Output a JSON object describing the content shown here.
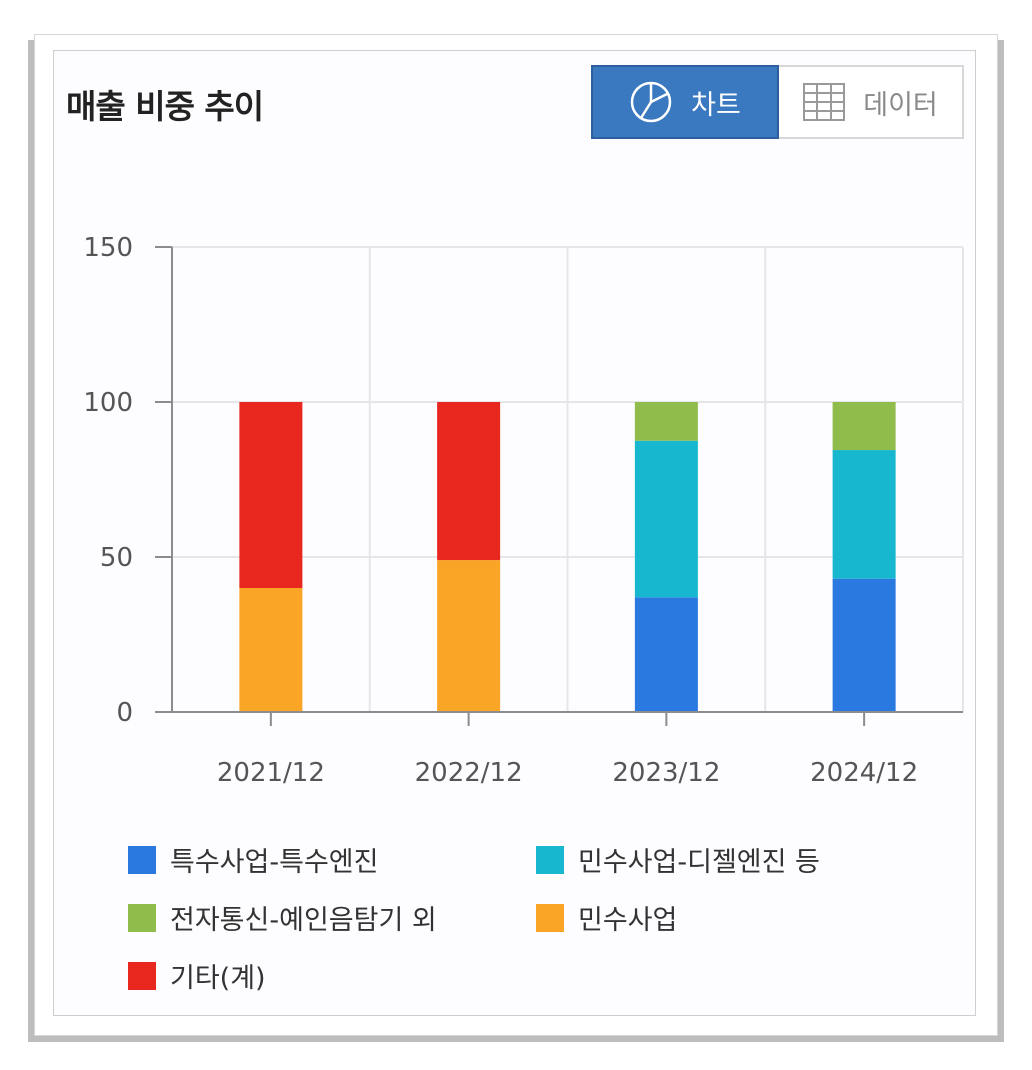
{
  "header": {
    "title": "매출 비중 추이"
  },
  "toggle": {
    "chart_label": "차트",
    "data_label": "데이터",
    "chart_icon": "pie-chart-icon",
    "data_icon": "table-grid-icon"
  },
  "chart_data": {
    "type": "bar",
    "stacked": true,
    "categories": [
      "2021/12",
      "2022/12",
      "2023/12",
      "2024/12"
    ],
    "ylim": [
      0,
      150
    ],
    "yticks": [
      0,
      50,
      100,
      150
    ],
    "grid": true,
    "legend_position": "bottom",
    "series": [
      {
        "name": "특수사업-특수엔진",
        "color": "#2979e0",
        "values": [
          0,
          0,
          37,
          43
        ]
      },
      {
        "name": "민수사업-디젤엔진 등",
        "color": "#17b8cf",
        "values": [
          0,
          0,
          50.5,
          41.5
        ]
      },
      {
        "name": "전자통신-예인음탐기 외",
        "color": "#8fbc4b",
        "values": [
          0,
          0,
          12.5,
          15.5
        ]
      },
      {
        "name": "민수사업",
        "color": "#fba526",
        "values": [
          40,
          49,
          0,
          0
        ]
      },
      {
        "name": "기타(계)",
        "color": "#e8281f",
        "values": [
          60,
          51,
          0,
          0
        ]
      }
    ]
  }
}
